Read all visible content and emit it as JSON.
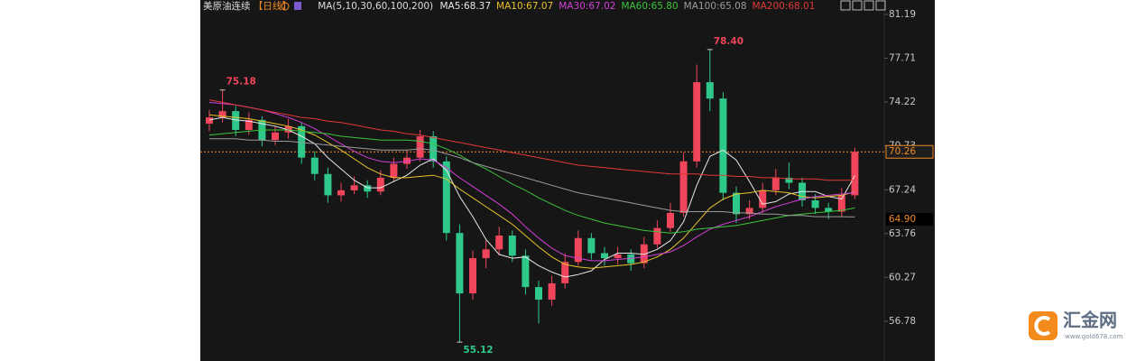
{
  "chart_data": {
    "type": "candlestick",
    "title": "美原油连续",
    "period": "【日线】",
    "ma_label": "MA(5,10,30,60,100,200)",
    "ylim": [
      53.62,
      82.34
    ],
    "yticks": [
      81.19,
      77.71,
      74.22,
      70.73,
      67.24,
      63.76,
      60.27,
      56.78
    ],
    "grid": false,
    "up_color": "#f0455a",
    "down_color": "#2ec98a",
    "ohlc": {
      "open": [
        72.5,
        73.0,
        73.5,
        72.0,
        72.8,
        71.2,
        71.8,
        72.3,
        69.8,
        68.5,
        66.8,
        67.2,
        67.6,
        67.1,
        68.2,
        69.3,
        69.8,
        71.5,
        69.5,
        63.8,
        59.0,
        61.8,
        62.5,
        63.6,
        62.0,
        59.5,
        58.5,
        59.8,
        61.5,
        63.4,
        62.2,
        61.8,
        62.1,
        61.4,
        62.9,
        64.2,
        65.4,
        69.5,
        75.8,
        74.5,
        67.0,
        65.3,
        65.8,
        67.2,
        68.2,
        67.8,
        66.4,
        65.8,
        65.5,
        66.8
      ],
      "high": [
        73.6,
        75.18,
        73.9,
        73.4,
        73.1,
        72.3,
        72.9,
        72.6,
        70.3,
        69.0,
        67.8,
        68.3,
        68.0,
        68.8,
        69.8,
        70.4,
        72.0,
        71.9,
        69.9,
        64.5,
        62.4,
        63.2,
        64.3,
        64.0,
        62.5,
        60.0,
        60.4,
        62.2,
        64.0,
        63.8,
        62.7,
        62.7,
        62.5,
        63.5,
        64.8,
        66.2,
        70.2,
        77.2,
        78.4,
        75.0,
        67.5,
        66.4,
        67.8,
        68.9,
        69.4,
        68.2,
        66.9,
        66.2,
        67.4,
        70.6
      ],
      "low": [
        71.9,
        72.6,
        71.5,
        71.6,
        70.7,
        70.8,
        71.3,
        69.3,
        68.0,
        66.2,
        66.3,
        66.9,
        66.6,
        66.8,
        67.9,
        68.9,
        69.5,
        69.0,
        63.2,
        55.12,
        58.5,
        61.0,
        62.0,
        61.5,
        58.9,
        56.6,
        58.0,
        59.4,
        61.2,
        61.7,
        61.2,
        61.3,
        60.8,
        61.0,
        62.6,
        63.9,
        65.1,
        69.0,
        73.5,
        66.4,
        64.6,
        64.9,
        65.4,
        66.8,
        67.3,
        65.9,
        65.3,
        64.9,
        65.1,
        66.5
      ],
      "close": [
        73.0,
        73.5,
        72.0,
        72.8,
        71.2,
        71.8,
        72.3,
        69.8,
        68.5,
        66.8,
        67.2,
        67.6,
        67.1,
        68.2,
        69.3,
        69.8,
        71.5,
        69.5,
        63.8,
        59.0,
        61.8,
        62.5,
        63.6,
        62.0,
        59.5,
        58.5,
        59.8,
        61.5,
        63.4,
        62.2,
        61.8,
        62.1,
        61.4,
        62.9,
        64.2,
        65.4,
        69.5,
        75.8,
        74.5,
        67.0,
        65.3,
        65.8,
        67.2,
        68.2,
        67.8,
        66.4,
        65.8,
        65.5,
        66.8,
        70.26
      ]
    },
    "series": [
      {
        "name": "MA5:68.37",
        "color": "#e8e8e8",
        "values": [
          72.8,
          73.0,
          72.8,
          72.7,
          72.5,
          72.3,
          72.0,
          71.5,
          70.9,
          69.8,
          68.9,
          68.0,
          67.4,
          67.4,
          67.9,
          68.4,
          69.2,
          69.7,
          68.8,
          66.7,
          65.1,
          63.3,
          62.1,
          61.8,
          61.9,
          61.2,
          60.7,
          60.3,
          60.5,
          60.8,
          61.7,
          62.2,
          62.2,
          62.1,
          62.5,
          63.2,
          64.7,
          67.6,
          69.9,
          70.4,
          69.6,
          67.9,
          66.1,
          66.3,
          66.9,
          67.1,
          67.1,
          66.7,
          66.5,
          68.37
        ]
      },
      {
        "name": "MA10:67.07",
        "color": "#e6c229",
        "values": [
          73.2,
          73.1,
          73.0,
          72.9,
          72.7,
          72.5,
          72.3,
          72.0,
          71.6,
          71.0,
          70.4,
          69.7,
          69.0,
          68.5,
          68.2,
          68.2,
          68.3,
          68.4,
          68.1,
          67.3,
          66.6,
          65.9,
          65.2,
          64.5,
          63.6,
          62.7,
          61.9,
          61.3,
          61.1,
          61.0,
          61.1,
          61.2,
          61.3,
          61.5,
          61.9,
          62.5,
          63.4,
          64.6,
          65.8,
          66.5,
          66.9,
          67.0,
          67.2,
          67.1,
          67.0,
          66.7,
          66.6,
          66.7,
          66.8,
          67.07
        ]
      },
      {
        "name": "MA30:67.02",
        "color": "#d23fd6",
        "values": [
          74.2,
          74.1,
          74.0,
          73.8,
          73.6,
          73.3,
          73.0,
          72.6,
          72.1,
          71.5,
          70.9,
          70.3,
          69.8,
          69.5,
          69.4,
          69.5,
          69.7,
          69.6,
          69.0,
          68.2,
          67.5,
          66.8,
          66.1,
          65.3,
          64.3,
          63.4,
          62.6,
          62.0,
          61.8,
          61.6,
          61.6,
          61.7,
          61.8,
          61.9,
          62.1,
          62.3,
          62.8,
          63.5,
          64.1,
          64.5,
          64.8,
          65.1,
          65.5,
          65.9,
          66.2,
          66.5,
          66.7,
          66.8,
          66.9,
          67.02
        ]
      },
      {
        "name": "MA60:65.80",
        "color": "#3cc43c",
        "values": [
          71.6,
          71.7,
          71.8,
          71.9,
          72.0,
          72.0,
          72.0,
          71.9,
          71.8,
          71.7,
          71.5,
          71.4,
          71.3,
          71.2,
          71.2,
          71.2,
          71.1,
          70.9,
          70.5,
          70.0,
          69.4,
          68.9,
          68.3,
          67.7,
          67.2,
          66.6,
          66.1,
          65.6,
          65.2,
          64.9,
          64.6,
          64.4,
          64.2,
          64.0,
          63.9,
          63.8,
          63.9,
          64.1,
          64.2,
          64.3,
          64.4,
          64.6,
          64.8,
          65.0,
          65.2,
          65.3,
          65.4,
          65.5,
          65.6,
          65.8
        ]
      },
      {
        "name": "MA100:65.08",
        "color": "#9a9a9a",
        "values": [
          71.3,
          71.3,
          71.3,
          71.2,
          71.2,
          71.1,
          71.1,
          71.0,
          70.9,
          70.8,
          70.7,
          70.6,
          70.5,
          70.4,
          70.4,
          70.4,
          70.5,
          70.4,
          70.1,
          69.8,
          69.4,
          69.1,
          68.8,
          68.5,
          68.2,
          67.9,
          67.6,
          67.3,
          67.0,
          66.8,
          66.6,
          66.4,
          66.2,
          66.0,
          65.8,
          65.6,
          65.5,
          65.5,
          65.5,
          65.5,
          65.4,
          65.4,
          65.3,
          65.3,
          65.2,
          65.2,
          65.1,
          65.1,
          65.1,
          65.08
        ]
      },
      {
        "name": "MA200:68.01",
        "color": "#e03a3a",
        "values": [
          74.4,
          74.2,
          74.0,
          73.8,
          73.6,
          73.4,
          73.2,
          73.0,
          72.9,
          72.7,
          72.6,
          72.4,
          72.2,
          72.0,
          71.9,
          71.7,
          71.6,
          71.4,
          71.2,
          71.0,
          70.8,
          70.6,
          70.4,
          70.2,
          70.0,
          69.8,
          69.6,
          69.4,
          69.2,
          69.1,
          69.0,
          68.9,
          68.8,
          68.7,
          68.6,
          68.5,
          68.5,
          68.5,
          68.4,
          68.4,
          68.3,
          68.3,
          68.2,
          68.2,
          68.1,
          68.1,
          68.1,
          68.0,
          68.0,
          68.01
        ]
      }
    ],
    "annotations": [
      {
        "value": 75.18,
        "label": "75.18",
        "kind": "high"
      },
      {
        "value": 78.4,
        "label": "78.40",
        "kind": "high"
      },
      {
        "value": 55.12,
        "label": "55.12",
        "kind": "low"
      }
    ],
    "current_price": 70.26,
    "marker_price": {
      "value": 64.9,
      "label": "64.90"
    }
  },
  "watermark": {
    "name": "汇金网",
    "url": "www.gold678.com"
  }
}
